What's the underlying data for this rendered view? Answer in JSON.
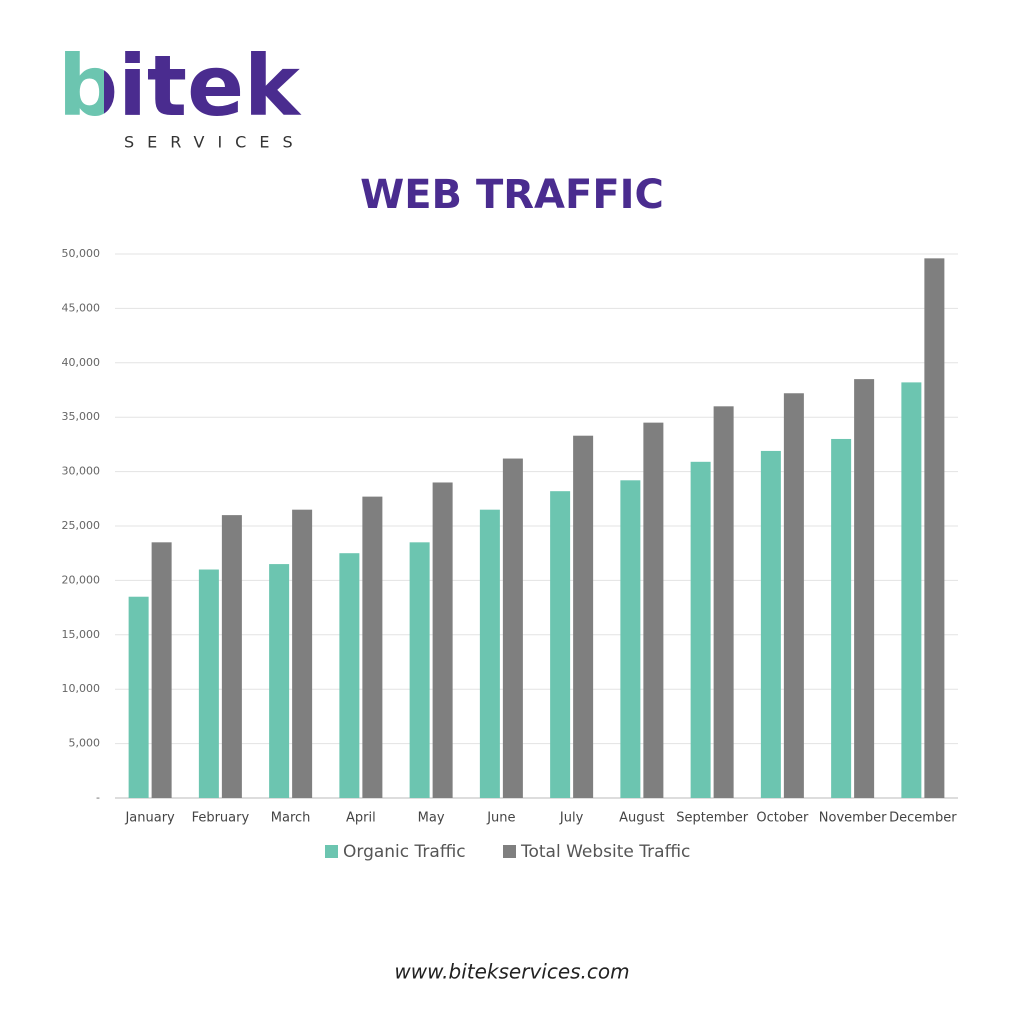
{
  "brand": {
    "name": "bitek",
    "tagline": "SERVICES"
  },
  "footer": "www.bitekservices.com",
  "chart_data": {
    "type": "bar",
    "title": "WEB TRAFFIC",
    "categories": [
      "January",
      "February",
      "March",
      "April",
      "May",
      "June",
      "July",
      "August",
      "September",
      "October",
      "November",
      "December"
    ],
    "series": [
      {
        "name": "Organic Traffic",
        "color": "#6cc5b0",
        "values": [
          18500,
          21000,
          21500,
          22500,
          23500,
          26500,
          28200,
          29200,
          30900,
          31900,
          33000,
          38200
        ]
      },
      {
        "name": "Total Website Traffic",
        "color": "#7f7f7f",
        "values": [
          23500,
          26000,
          26500,
          27700,
          29000,
          31200,
          33300,
          34500,
          36000,
          37200,
          38500,
          49600
        ]
      }
    ],
    "ylim": [
      0,
      50000
    ],
    "yticks": [
      {
        "value": 0,
        "label": "-"
      },
      {
        "value": 5000,
        "label": "5,000"
      },
      {
        "value": 10000,
        "label": "10,000"
      },
      {
        "value": 15000,
        "label": "15,000"
      },
      {
        "value": 20000,
        "label": "20,000"
      },
      {
        "value": 25000,
        "label": "25,000"
      },
      {
        "value": 30000,
        "label": "30,000"
      },
      {
        "value": 35000,
        "label": "35,000"
      },
      {
        "value": 40000,
        "label": "40,000"
      },
      {
        "value": 45000,
        "label": "45,000"
      },
      {
        "value": 50000,
        "label": "50,000"
      }
    ],
    "grid": true,
    "legend": "bottom"
  }
}
